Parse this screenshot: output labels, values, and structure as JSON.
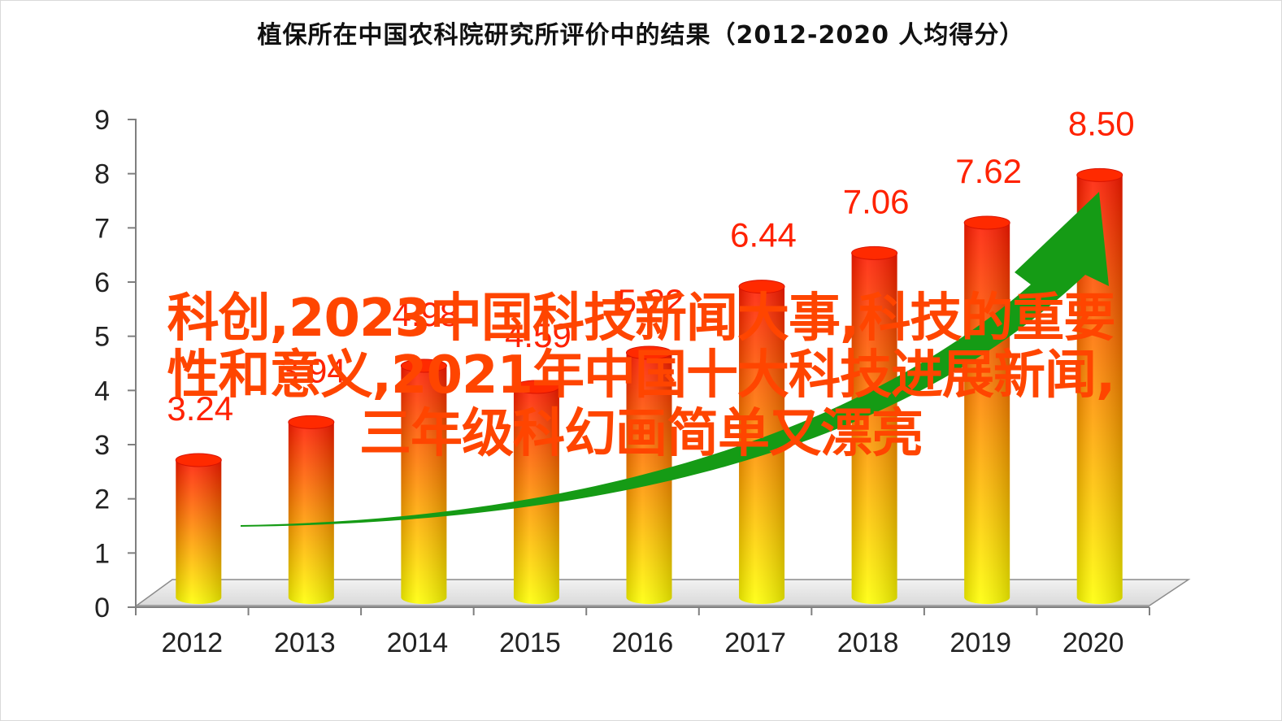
{
  "title": "植保所在中国农科院研究所评价中的结果（2012-2020  人均得分）",
  "overlay": {
    "line1": "科创,2023中国科技新闻大事,科技的重要",
    "line2": "性和意义,2021年中国十大科技进展新闻,",
    "line3": "三年级科幻画简单又漂亮"
  },
  "colors": {
    "bar_top": "#ff1a00",
    "bar_bottom": "#ffff00",
    "label": "#ff2200",
    "arrow": "#159b15",
    "overlay": "#ff4500"
  },
  "chart_data": {
    "type": "bar",
    "title": "植保所在中国农科院研究所评价中的结果（2012-2020  人均得分）",
    "categories": [
      "2012",
      "2013",
      "2014",
      "2015",
      "2016",
      "2017",
      "2018",
      "2019",
      "2020"
    ],
    "values": [
      3.24,
      3.94,
      4.98,
      4.59,
      5.22,
      6.44,
      7.06,
      7.62,
      8.5
    ],
    "data_labels": [
      "3.24",
      "3.94",
      "4.98",
      "4.59",
      "5.22",
      "6.44",
      "7.06",
      "7.62",
      "8.50"
    ],
    "yticks": [
      "0",
      "1",
      "2",
      "3",
      "4",
      "5",
      "6",
      "7",
      "8",
      "9"
    ],
    "ylim": [
      0,
      9
    ],
    "xlabel": "",
    "ylabel": "",
    "grid": false,
    "legend": "none",
    "trend_arrow": true
  }
}
